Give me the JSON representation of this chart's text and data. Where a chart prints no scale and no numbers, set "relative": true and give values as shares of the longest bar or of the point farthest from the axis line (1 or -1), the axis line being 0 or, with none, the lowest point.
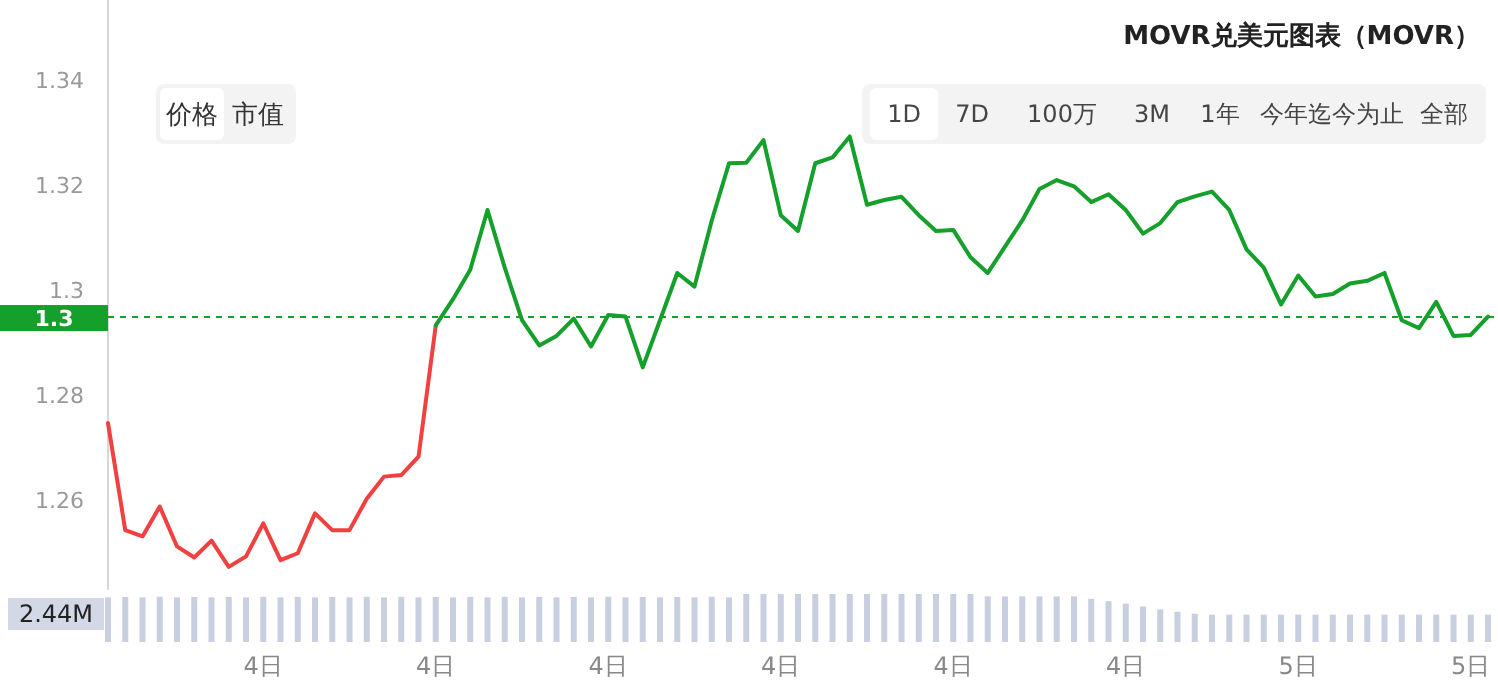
{
  "chart_data": [
    {
      "type": "line",
      "title": "MOVR兑美元图表（MOVR）",
      "annotations": [
        "价格",
        "市值",
        "1D",
        "7D",
        "100万",
        "3M",
        "1年",
        "今年迄今为止",
        "全部"
      ],
      "categories": [
        null,
        null,
        null,
        null,
        null,
        null,
        null,
        null,
        null,
        null,
        null,
        null,
        null,
        null,
        null,
        null,
        null,
        null,
        null,
        null,
        null,
        null,
        null,
        null,
        null,
        null,
        null,
        null,
        null,
        null,
        null,
        null,
        null,
        null,
        null,
        null,
        null,
        null,
        null,
        null,
        null,
        null,
        null,
        null,
        null,
        null,
        null,
        null,
        null,
        null,
        null,
        null,
        null,
        null,
        null,
        null,
        null,
        null,
        null,
        null,
        null,
        null,
        null,
        null,
        null,
        null,
        null,
        null,
        null,
        null,
        null,
        null,
        null,
        null,
        null,
        null,
        null,
        null,
        null,
        null,
        null
      ],
      "ylim": [
        1.2436,
        1.356
      ],
      "yticks": [
        1.26,
        1.28,
        1.3,
        1.32,
        1.34
      ],
      "tick_labels": "y",
      "ref_lines": [
        {
          "axis": "y",
          "value": 1.2956,
          "label": "1.3",
          "color": "#14a02a",
          "line_style": "dashed"
        }
      ],
      "series": [
        {
          "color": "#f04040",
          "values": [
            1.2754,
            1.255,
            1.2538,
            1.2595,
            1.2519,
            1.2498,
            1.253,
            1.248,
            1.25,
            1.2563,
            1.2493,
            1.2506,
            1.2582,
            1.255,
            1.255,
            1.261,
            1.2652,
            1.2655,
            1.269,
            1.294,
            null,
            null,
            null,
            null,
            null,
            null,
            null,
            null,
            null,
            null,
            null,
            null,
            null,
            null,
            null,
            null,
            null,
            null,
            null,
            null,
            null,
            null,
            null,
            null,
            null,
            null,
            null,
            null,
            null,
            null,
            null,
            null,
            null,
            null,
            null,
            null,
            null,
            null,
            null,
            null,
            null,
            null,
            null,
            null,
            null,
            null,
            null,
            null,
            null,
            null,
            null,
            null,
            null,
            null,
            null,
            null,
            null,
            null,
            null,
            null,
            null
          ]
        },
        {
          "color": "#14a02a",
          "values": [
            null,
            null,
            null,
            null,
            null,
            null,
            null,
            null,
            null,
            null,
            null,
            null,
            null,
            null,
            null,
            null,
            null,
            null,
            null,
            1.294,
            1.299,
            1.3046,
            1.316,
            1.305,
            1.295,
            1.2902,
            1.292,
            1.2953,
            1.29,
            1.296,
            1.2957,
            1.286,
            1.295,
            1.304,
            1.3014,
            1.314,
            1.3249,
            1.325,
            1.3293,
            1.315,
            1.312,
            1.3249,
            1.326,
            1.33,
            1.317,
            1.3179,
            1.3185,
            1.315,
            1.312,
            1.3122,
            1.307,
            1.304,
            1.309,
            1.314,
            1.32,
            1.3217,
            1.3205,
            1.3175,
            1.319,
            1.316,
            1.3115,
            1.3135,
            1.3175,
            1.3186,
            1.3195,
            1.316,
            1.3085,
            1.305,
            1.298,
            1.3035,
            1.2995,
            1.3,
            1.302,
            1.3025,
            1.304,
            1.295,
            1.2935,
            1.2985,
            1.292,
            1.2922,
            1.2957
          ]
        }
      ]
    },
    {
      "type": "bar",
      "relative": true,
      "color": "#c8cfe0",
      "annotations": [
        "2.44M"
      ],
      "tick_labels": "x",
      "categories": [
        null,
        null,
        null,
        null,
        null,
        null,
        null,
        null,
        null,
        "4日",
        null,
        null,
        null,
        null,
        null,
        null,
        null,
        null,
        null,
        "4日",
        null,
        null,
        null,
        null,
        null,
        null,
        null,
        null,
        null,
        "4日",
        null,
        null,
        null,
        null,
        null,
        null,
        null,
        null,
        null,
        "4日",
        null,
        null,
        null,
        null,
        null,
        null,
        null,
        null,
        null,
        "4日",
        null,
        null,
        null,
        null,
        null,
        null,
        null,
        null,
        null,
        "4日",
        null,
        null,
        null,
        null,
        null,
        null,
        null,
        null,
        null,
        "5日",
        null,
        null,
        null,
        null,
        null,
        null,
        null,
        null,
        null,
        "5日",
        null
      ],
      "values": [
        0.93,
        0.94,
        0.93,
        0.94,
        0.93,
        0.94,
        0.93,
        0.94,
        0.93,
        0.94,
        0.93,
        0.94,
        0.93,
        0.94,
        0.93,
        0.94,
        0.93,
        0.94,
        0.93,
        0.94,
        0.93,
        0.94,
        0.93,
        0.94,
        0.93,
        0.94,
        0.93,
        0.94,
        0.93,
        0.94,
        0.93,
        0.94,
        0.93,
        0.94,
        0.93,
        0.94,
        0.93,
        1,
        1,
        1,
        1,
        1,
        1,
        1,
        1,
        1,
        1,
        1,
        1,
        1,
        1,
        0.95,
        0.95,
        0.95,
        0.95,
        0.95,
        0.95,
        0.9,
        0.85,
        0.8,
        0.74,
        0.68,
        0.63,
        0.59,
        0.57,
        0.57,
        0.57,
        0.57,
        0.57,
        0.57,
        0.57,
        0.57,
        0.57,
        0.57,
        0.57,
        0.57,
        0.57,
        0.57,
        0.57,
        0.57,
        0.57
      ]
    }
  ]
}
